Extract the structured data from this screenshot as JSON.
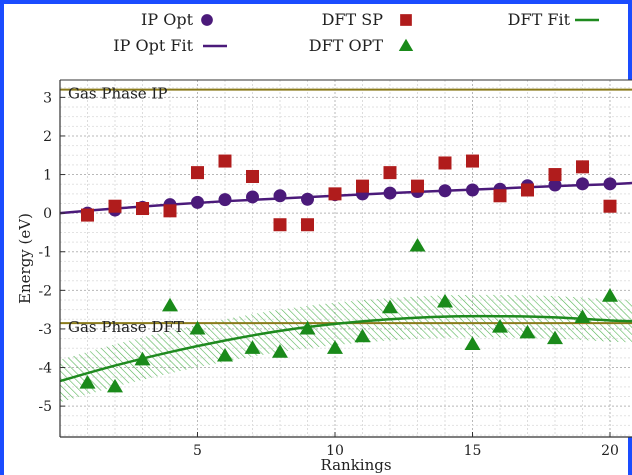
{
  "chart_data": {
    "type": "scatter",
    "xlabel": "Rankings",
    "ylabel": "Energy (eV)",
    "xlim": [
      0,
      20.8
    ],
    "ylim": [
      -5.8,
      3.45
    ],
    "xticks": [
      5,
      10,
      15,
      20
    ],
    "yticks": [
      -5,
      -4,
      -3,
      -2,
      -1,
      0,
      1,
      2,
      3
    ],
    "grid": true,
    "legend_position": "top",
    "legend": [
      {
        "label": "IP Opt",
        "marker": "circle",
        "color": "#4b1a7a"
      },
      {
        "label": "DFT SP",
        "marker": "square",
        "color": "#b01c1c"
      },
      {
        "label": "DFT Fit",
        "marker": "line",
        "color": "#1f8a1f"
      },
      {
        "label": "IP Opt Fit",
        "marker": "line",
        "color": "#4b1a7a"
      },
      {
        "label": "DFT OPT",
        "marker": "triangle",
        "color": "#1a8a1a"
      }
    ],
    "series": [
      {
        "name": "IP Opt",
        "marker": "circle",
        "color": "#4b1a7a",
        "x": [
          1,
          2,
          3,
          4,
          5,
          6,
          7,
          8,
          9,
          10,
          11,
          12,
          13,
          14,
          15,
          16,
          17,
          18,
          19,
          20
        ],
        "y": [
          0.0,
          0.08,
          0.15,
          0.22,
          0.28,
          0.35,
          0.42,
          0.45,
          0.36,
          0.48,
          0.5,
          0.52,
          0.56,
          0.58,
          0.6,
          0.62,
          0.71,
          0.73,
          0.76,
          0.76
        ]
      },
      {
        "name": "DFT SP",
        "marker": "square",
        "color": "#b01c1c",
        "x": [
          1,
          2,
          3,
          4,
          5,
          6,
          7,
          8,
          9,
          10,
          11,
          12,
          13,
          14,
          15,
          16,
          17,
          18,
          19,
          20
        ],
        "y": [
          -0.05,
          0.18,
          0.12,
          0.06,
          1.05,
          1.35,
          0.95,
          -0.3,
          -0.3,
          0.5,
          0.7,
          1.05,
          0.7,
          1.3,
          1.35,
          0.45,
          0.6,
          1.0,
          1.2,
          0.18
        ]
      },
      {
        "name": "DFT OPT",
        "marker": "triangle",
        "color": "#1a8a1a",
        "x": [
          1,
          2,
          3,
          4,
          5,
          6,
          7,
          8,
          9,
          10,
          11,
          12,
          13,
          14,
          15,
          16,
          17,
          18,
          19,
          20
        ],
        "y": [
          -4.4,
          -4.5,
          -3.8,
          -2.4,
          -3.0,
          -3.7,
          -3.5,
          -3.6,
          -3.0,
          -3.5,
          -3.2,
          -2.45,
          -0.85,
          -2.3,
          -3.4,
          -2.95,
          -3.1,
          -3.25,
          -2.7,
          -2.15
        ]
      },
      {
        "name": "IP Opt Fit",
        "type": "line",
        "color": "#4b1a7a",
        "x": [
          0,
          2,
          4,
          6,
          8,
          10,
          12,
          14,
          16,
          18,
          20,
          20.8
        ],
        "y": [
          0.0,
          0.12,
          0.22,
          0.31,
          0.38,
          0.45,
          0.52,
          0.58,
          0.64,
          0.7,
          0.75,
          0.78
        ]
      },
      {
        "name": "DFT Fit",
        "type": "line",
        "color": "#1f8a1f",
        "x": [
          0,
          2,
          4,
          6,
          8,
          10,
          12,
          14,
          16,
          18,
          20,
          20.8
        ],
        "y": [
          -4.35,
          -3.95,
          -3.6,
          -3.3,
          -3.05,
          -2.87,
          -2.75,
          -2.68,
          -2.67,
          -2.7,
          -2.78,
          -2.8
        ],
        "band_halfwidth": 0.55
      }
    ],
    "reference_lines": [
      {
        "label": "Gas Phase IP",
        "y": 3.2,
        "color": "#8a7a1a"
      },
      {
        "label": "Gas Phase DFT",
        "y": -2.85,
        "color": "#8a7a1a"
      }
    ]
  }
}
